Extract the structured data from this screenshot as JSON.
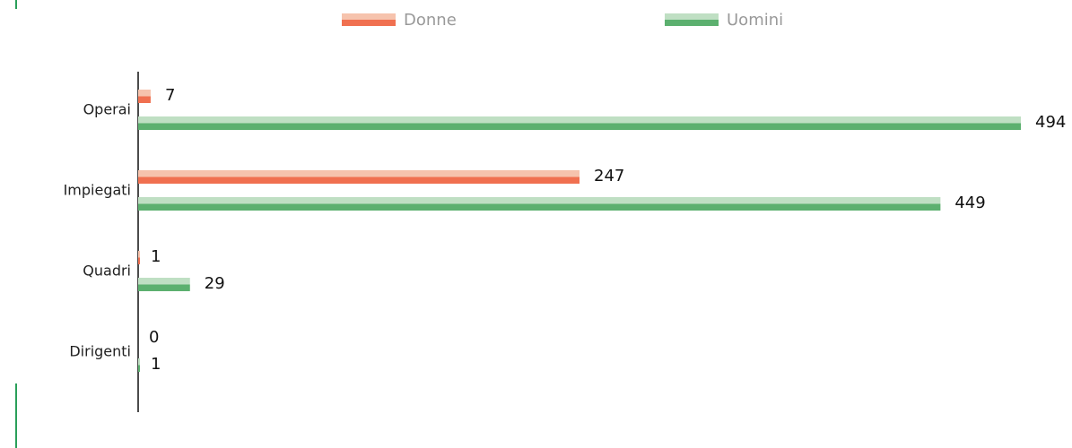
{
  "chart_data": {
    "type": "bar",
    "orientation": "horizontal",
    "categories": [
      "Operai",
      "Impiegati",
      "Quadri",
      "Dirigenti"
    ],
    "series": [
      {
        "name": "Donne",
        "color": "#f07050",
        "light_color": "#f6c3ad",
        "values": [
          7,
          247,
          1,
          0
        ]
      },
      {
        "name": "Uomini",
        "color": "#5cb06f",
        "light_color": "#bfdfc3",
        "values": [
          494,
          449,
          29,
          1
        ]
      }
    ],
    "legend": "top"
  }
}
